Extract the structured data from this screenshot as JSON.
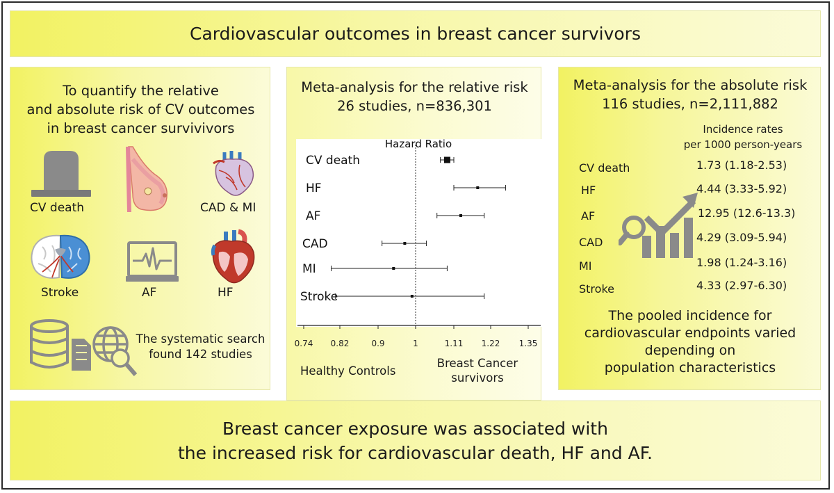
{
  "title": "Cardiovascular outcomes in breast cancer survivors",
  "left": {
    "goal_lines": [
      "To quantify the relative",
      "and absolute risk of CV outcomes",
      "in breast cancer survivivors"
    ],
    "icons": [
      {
        "icon": "tombstone-icon",
        "label": "CV death"
      },
      {
        "icon": "breast-anatomy-icon",
        "label": ""
      },
      {
        "icon": "heart-coronary-icon",
        "label": "CAD & MI"
      },
      {
        "icon": "brain-icon",
        "label": "Stroke"
      },
      {
        "icon": "ecg-monitor-icon",
        "label": "AF"
      },
      {
        "icon": "heart-section-icon",
        "label": "HF"
      }
    ],
    "search_lines": [
      "The systematic search",
      "found 142 studies"
    ]
  },
  "middle": {
    "heading_lines": [
      "Meta-analysis for the relative risk",
      "26 studies, n=836,301"
    ],
    "favors_left": "Healthy Controls",
    "favors_right_lines": [
      "Breast Cancer",
      "survivors"
    ]
  },
  "right": {
    "heading_lines": [
      "Meta-analysis for the absolute risk",
      "116 studies, n=2,111,882"
    ],
    "ir_header_lines": [
      "Incidence rates",
      "per 1000 person-years"
    ],
    "rows": [
      {
        "label": "CV death",
        "value": "1.73 (1.18-2.53)"
      },
      {
        "label": "HF",
        "value": "4.44 (3.33-5.92)"
      },
      {
        "label": "AF",
        "value": "12.95 (12.6-13.3)"
      },
      {
        "label": "CAD",
        "value": "4.29 (3.09-5.94)"
      },
      {
        "label": "MI",
        "value": "1.98 (1.24-3.16)"
      },
      {
        "label": "Stroke",
        "value": "4.33 (2.97-6.30)"
      }
    ],
    "note_lines": [
      "The pooled incidence for",
      "cardiovascular endpoints varied",
      "depending on",
      "population characteristics"
    ]
  },
  "conclusion_lines": [
    "Breast cancer exposure was associated with",
    "the increased risk for cardiovascular death, HF and AF."
  ],
  "colors": {
    "panel_yellow": "#f2f262",
    "icon_gray": "#8a8a8a",
    "frame": "#2a2a2a"
  },
  "chart_data": {
    "type": "forest",
    "title": "Hazard Ratio",
    "x_scale": "log",
    "xlim": [
      0.74,
      1.35
    ],
    "reference": 1,
    "ticks": [
      "0.74",
      "0.82",
      "0.9",
      "1",
      "1.11",
      "1.22",
      "1.35"
    ],
    "rows": [
      {
        "label": "CV death",
        "hr": 1.09,
        "lo": 1.07,
        "hi": 1.11
      },
      {
        "label": "HF",
        "hr": 1.18,
        "lo": 1.11,
        "hi": 1.27
      },
      {
        "label": "AF",
        "hr": 1.13,
        "lo": 1.06,
        "hi": 1.2
      },
      {
        "label": "CAD",
        "hr": 0.97,
        "lo": 0.91,
        "hi": 1.03
      },
      {
        "label": "MI",
        "hr": 0.94,
        "lo": 0.8,
        "hi": 1.09
      },
      {
        "label": "Stroke",
        "hr": 0.99,
        "lo": 0.81,
        "hi": 1.2
      }
    ]
  }
}
